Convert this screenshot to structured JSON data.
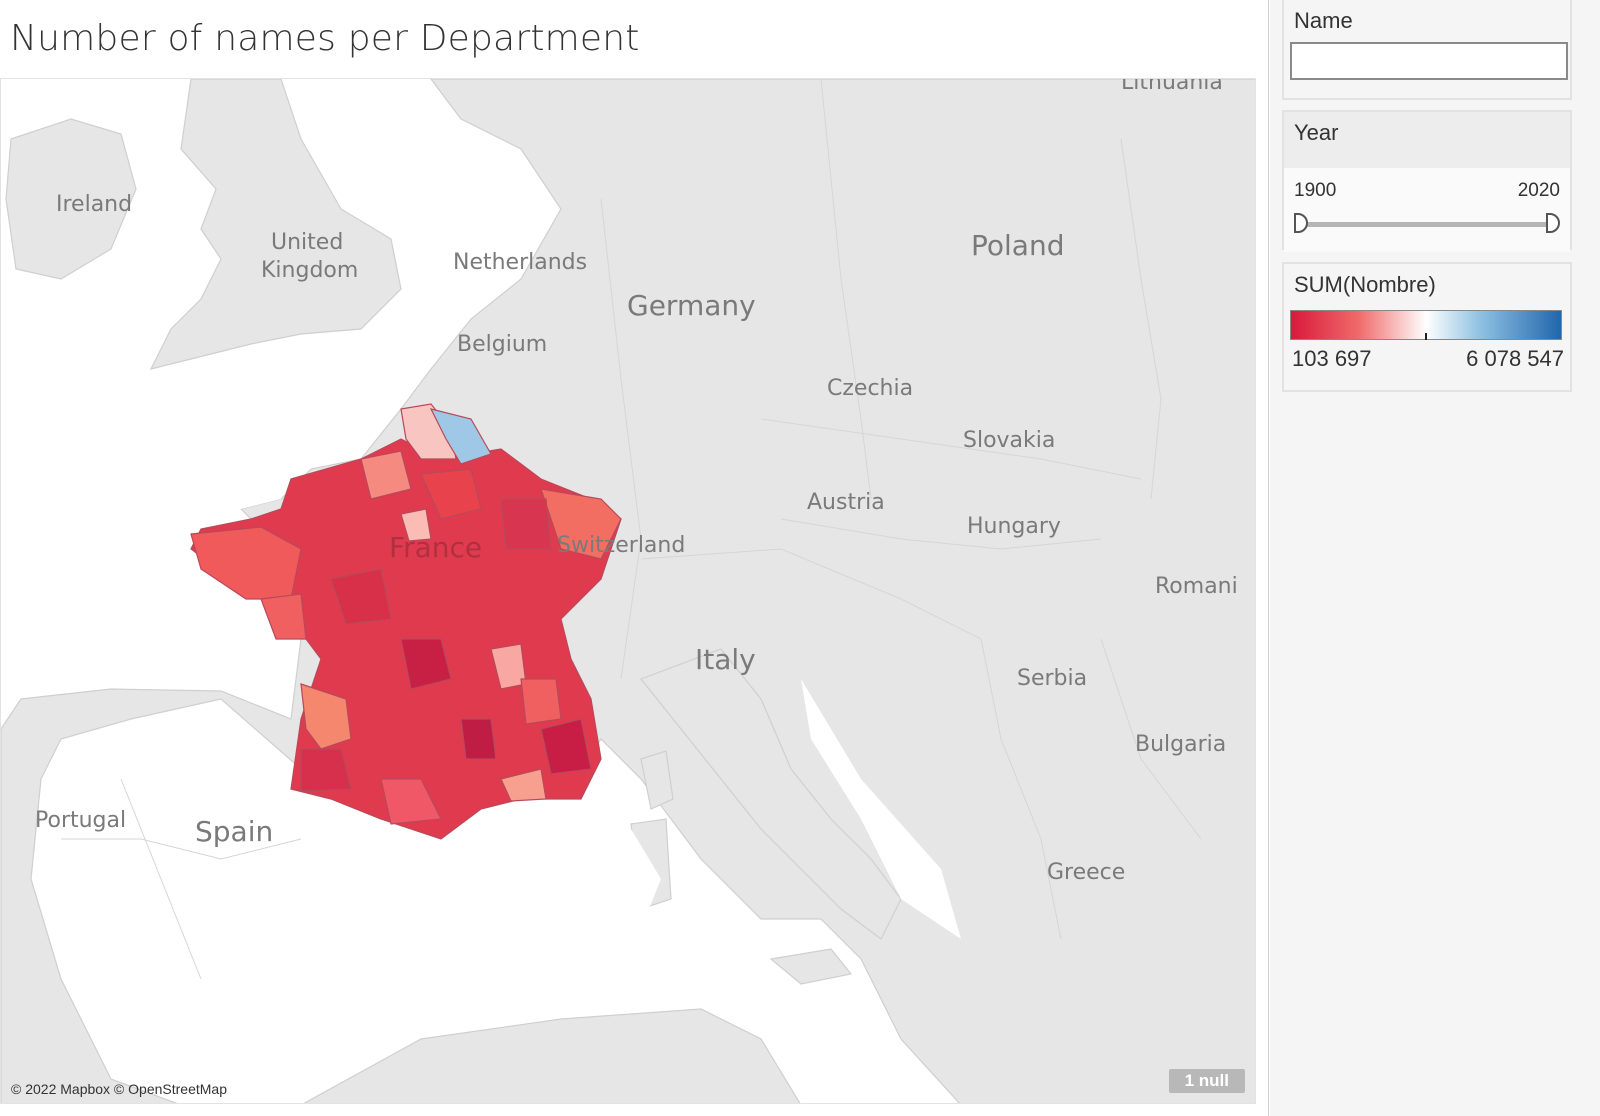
{
  "title": "Number of names per Department",
  "map": {
    "attribution": "© 2022 Mapbox © OpenStreetMap",
    "null_badge": "1 null",
    "labels": {
      "ireland": "Ireland",
      "uk_line1": "United",
      "uk_line2": "Kingdom",
      "netherlands": "Netherlands",
      "belgium": "Belgium",
      "germany": "Germany",
      "poland": "Poland",
      "lithuania": "Lithuania",
      "czechia": "Czechia",
      "slovakia": "Slovakia",
      "austria": "Austria",
      "hungary": "Hungary",
      "switzerland": "Switzerland",
      "france": "France",
      "romania": "Romani",
      "italy": "Italy",
      "serbia": "Serbia",
      "bulgaria": "Bulgaria",
      "portugal": "Portugal",
      "spain": "Spain",
      "greece": "Greece"
    },
    "colors": {
      "land": "#e6e6e6",
      "water": "#ffffff",
      "border": "#c9c9c9",
      "dept_border": "#b8495a"
    }
  },
  "filters": {
    "name": {
      "label": "Name",
      "value": ""
    },
    "year": {
      "label": "Year",
      "min": "1900",
      "max": "2020",
      "selected_start": 1900,
      "selected_end": 2020
    }
  },
  "legend": {
    "title": "SUM(Nombre)",
    "min": "103 697",
    "max": "6 078 547",
    "colors": [
      "#d9193b",
      "#f06a6a",
      "#ffffff",
      "#8fc1e3",
      "#2166ac"
    ]
  }
}
